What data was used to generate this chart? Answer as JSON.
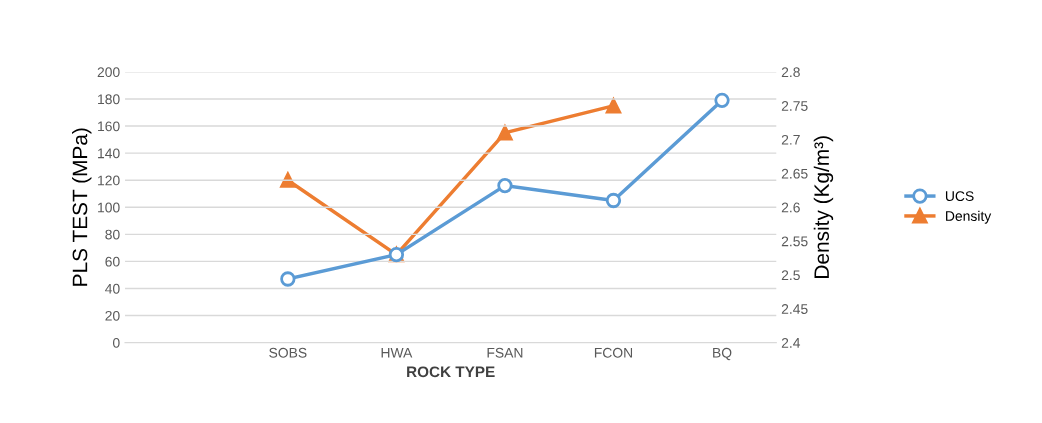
{
  "chart_data": {
    "type": "line",
    "xlabel": "ROCK TYPE",
    "ylabel": "PLS TEST (MPa)",
    "y2label": "Density (Kg/m³)",
    "categories": [
      null,
      "SOBS",
      "HWA",
      "FSAN",
      "FCON",
      "BQ"
    ],
    "series": [
      {
        "name": "UCS",
        "color": "#5b9bd5",
        "marker": "circle",
        "values": [
          null,
          47,
          65,
          116,
          105,
          179
        ]
      },
      {
        "name": "Density",
        "color": "#ed7d31",
        "marker": "triangle",
        "axis": "y2",
        "values": [
          null,
          2.64,
          2.53,
          2.71,
          2.75,
          null
        ]
      }
    ],
    "ylim": [
      0,
      200
    ],
    "yticks": [
      0,
      20,
      40,
      60,
      80,
      100,
      120,
      140,
      160,
      180,
      200
    ],
    "y2lim": [
      2.4,
      2.8
    ],
    "y2ticks": [
      2.4,
      2.45,
      2.5,
      2.55,
      2.6,
      2.65,
      2.7,
      2.75,
      2.8
    ],
    "grid": "y",
    "legend": "right"
  }
}
